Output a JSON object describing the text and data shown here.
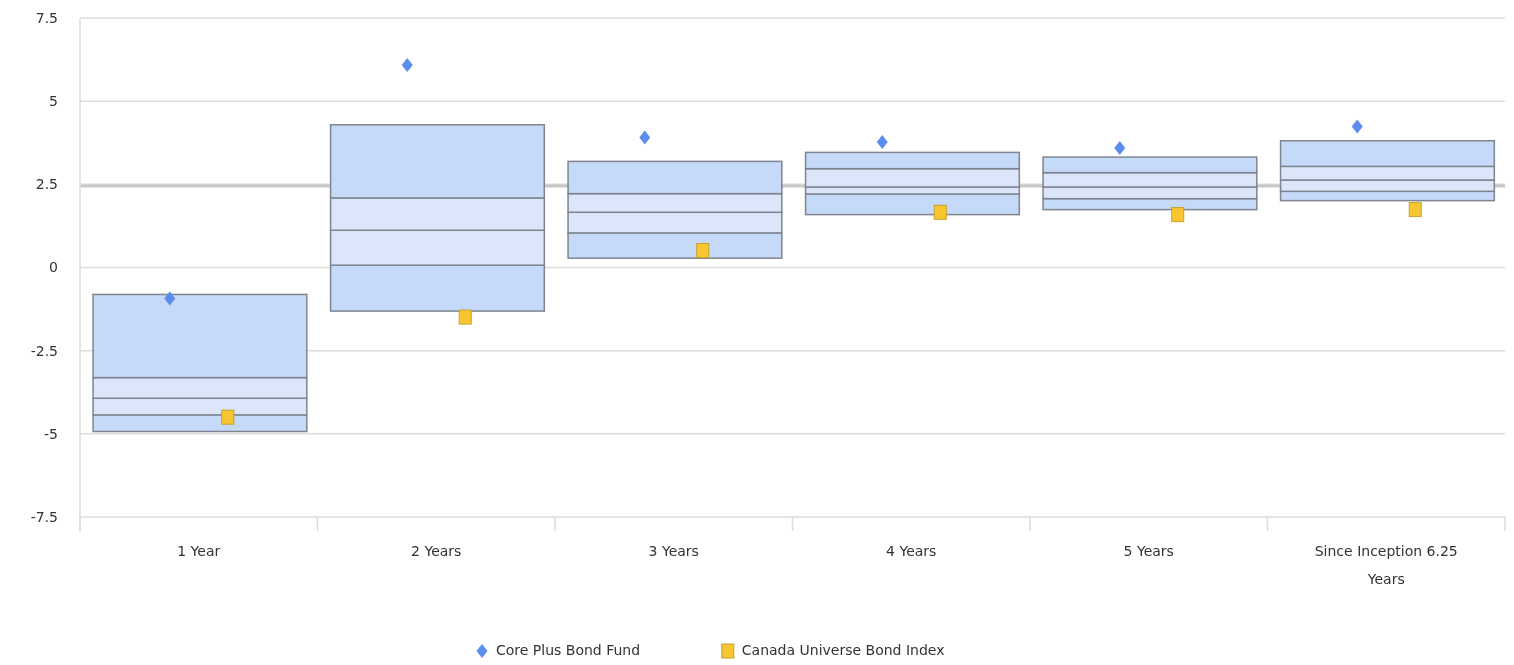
{
  "chart_data": {
    "type": "bar",
    "categories": [
      "1 Year",
      "2 Years",
      "3 Years",
      "4 Years",
      "5 Years",
      "Since Inception 6.25 Years"
    ],
    "ylim": [
      -7.5,
      7.5
    ],
    "yticks": [
      {
        "value": -7.5,
        "label": "-7.5"
      },
      {
        "value": -5,
        "label": "-5"
      },
      {
        "value": -2.5,
        "label": "-2.5"
      },
      {
        "value": 0,
        "label": "0"
      },
      {
        "value": 2.5,
        "label": "2.5"
      },
      {
        "value": 5,
        "label": "5"
      },
      {
        "value": 7.5,
        "label": "7.5"
      }
    ],
    "grid": "y",
    "legend": "bottom",
    "ref_lines": [
      {
        "axis": "y",
        "value": 2.45,
        "color": "#c8c8c8"
      }
    ],
    "series": [
      {
        "color": "#c5d9f8",
        "base": [
          -4.93,
          -1.31,
          0.28,
          1.59,
          1.74,
          2.01
        ],
        "values": [
          0.5,
          1.38,
          0.76,
          0.62,
          0.33,
          0.28
        ]
      },
      {
        "color": "#dce6fb",
        "base": [
          -4.43,
          0.07,
          1.04,
          2.21,
          2.07,
          2.29
        ],
        "values": [
          0.5,
          1.05,
          0.62,
          0.21,
          0.35,
          0.34
        ]
      },
      {
        "color": "#dce6fb",
        "base": [
          -3.93,
          1.12,
          1.66,
          2.42,
          2.42,
          2.63
        ],
        "values": [
          0.62,
          0.97,
          0.56,
          0.55,
          0.43,
          0.41
        ]
      },
      {
        "color": "#c5d9f8",
        "base": [
          -3.31,
          2.09,
          2.22,
          2.97,
          2.85,
          3.04
        ],
        "values": [
          2.5,
          2.2,
          0.97,
          0.49,
          0.47,
          0.77
        ]
      },
      {
        "type": "scatter",
        "name": "Core Plus Bond Fund",
        "color": "#5b8def",
        "marker": "diamond",
        "x": [
          "1 Year",
          "2 Years",
          "3 Years",
          "4 Years",
          "5 Years",
          "Since Inception 6.25 Years"
        ],
        "values": [
          -0.93,
          6.09,
          3.91,
          3.77,
          3.59,
          4.24
        ]
      },
      {
        "type": "scatter",
        "name": "Canada Universe Bond Index",
        "color": "#f8c630",
        "marker": "square",
        "x": [
          "1 Year",
          "2 Years",
          "3 Years",
          "4 Years",
          "5 Years",
          "Since Inception 6.25 Years"
        ],
        "values": [
          -4.5,
          -1.49,
          0.51,
          1.66,
          1.59,
          1.74
        ]
      }
    ]
  }
}
